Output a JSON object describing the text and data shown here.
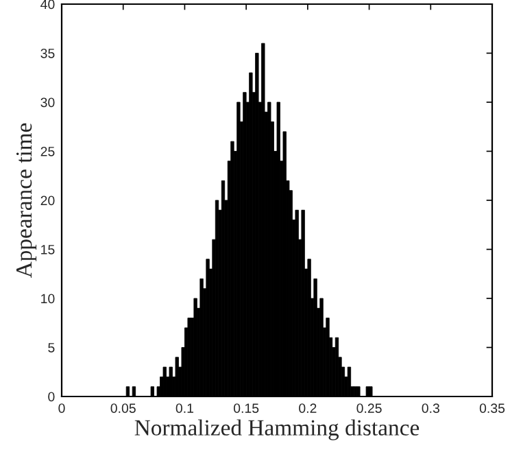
{
  "chart_data": {
    "type": "histogram",
    "xlabel": "Normalized Hamming distance",
    "ylabel": "Appearance time",
    "color": "#000000",
    "bins": [
      0.05,
      0.0525,
      0.055,
      0.0575,
      0.06,
      0.0625,
      0.065,
      0.0675,
      0.07,
      0.0725,
      0.075,
      0.0775,
      0.08,
      0.0825,
      0.085,
      0.0875,
      0.09,
      0.0925,
      0.095,
      0.0975,
      0.1,
      0.1025,
      0.105,
      0.1075,
      0.11,
      0.1125,
      0.115,
      0.1175,
      0.12,
      0.1225,
      0.125,
      0.1275,
      0.13,
      0.1325,
      0.135,
      0.1375,
      0.14,
      0.1425,
      0.145,
      0.1475,
      0.15,
      0.1525,
      0.155,
      0.1575,
      0.16,
      0.1625,
      0.165,
      0.1675,
      0.17,
      0.1725,
      0.175,
      0.1775,
      0.18,
      0.1825,
      0.185,
      0.1875,
      0.19,
      0.1925,
      0.195,
      0.1975,
      0.2,
      0.2025,
      0.205,
      0.2075,
      0.21,
      0.2125,
      0.215,
      0.2175,
      0.22,
      0.2225,
      0.225,
      0.2275,
      0.23,
      0.2325,
      0.235,
      0.2375,
      0.24,
      0.2425,
      0.245,
      0.2475,
      0.25,
      0.2525,
      0.255,
      0.2575,
      0.26
    ],
    "values": [
      0,
      1,
      0,
      1,
      0,
      0,
      0,
      0,
      0,
      1,
      0,
      1,
      2,
      3,
      2,
      3,
      2,
      4,
      3,
      5,
      7,
      8,
      8,
      10,
      9,
      12,
      11,
      14,
      13,
      16,
      20,
      19,
      22,
      20,
      24,
      26,
      25,
      30,
      28,
      31,
      30,
      33,
      31,
      35,
      30,
      36,
      29,
      30,
      28,
      25,
      30,
      24,
      27,
      22,
      21,
      18,
      19,
      16,
      19,
      13,
      14,
      10,
      12,
      9,
      10,
      7,
      8,
      6,
      5,
      6,
      4,
      3,
      2,
      3,
      1,
      1,
      1,
      0,
      0,
      1,
      1,
      0,
      0,
      0
    ],
    "xlim": [
      0,
      0.35
    ],
    "xticks": [
      0,
      0.05,
      0.1,
      0.15,
      0.2,
      0.25,
      0.3,
      0.35
    ],
    "ylim": [
      0,
      40
    ],
    "yticks": [
      0,
      5,
      10,
      15,
      20,
      25,
      30,
      35,
      40
    ],
    "grid": false
  }
}
